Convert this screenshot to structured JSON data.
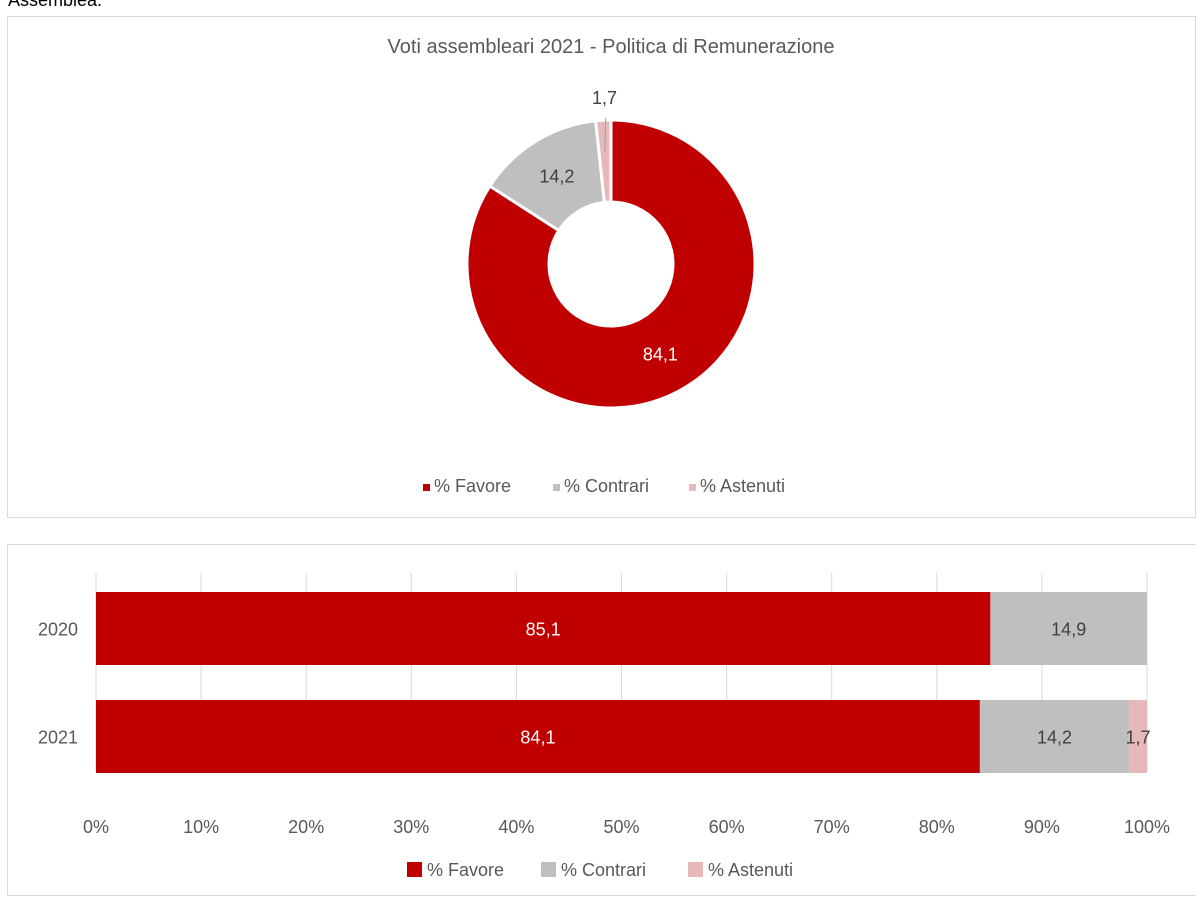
{
  "page": {
    "top_text": "Assemblea."
  },
  "chart_data": [
    {
      "type": "pie",
      "variant": "donut",
      "title": "Voti assembleari 2021 - Politica di Remunerazione",
      "categories": [
        "% Favore",
        "% Contrari",
        "% Astenuti"
      ],
      "values": [
        84.1,
        14.2,
        1.7
      ],
      "labels": [
        "84,1",
        "14,2",
        "1,7"
      ],
      "colors": [
        "#c00000",
        "#bfbfbf",
        "#e6b8b7"
      ],
      "legend_position": "bottom"
    },
    {
      "type": "bar",
      "orientation": "horizontal",
      "stacked": "percent",
      "categories": [
        "2020",
        "2021"
      ],
      "series": [
        {
          "name": "% Favore",
          "values": [
            85.1,
            84.1
          ],
          "labels": [
            "85,1",
            "84,1"
          ],
          "color": "#c00000"
        },
        {
          "name": "% Contrari",
          "values": [
            14.9,
            14.2
          ],
          "labels": [
            "14,9",
            "14,2"
          ],
          "color": "#bfbfbf"
        },
        {
          "name": "% Astenuti",
          "values": [
            0,
            1.7
          ],
          "labels": [
            "",
            "1,7"
          ],
          "color": "#e6b8b7"
        }
      ],
      "xlim": [
        0,
        100
      ],
      "xticks": [
        "0%",
        "10%",
        "20%",
        "30%",
        "40%",
        "50%",
        "60%",
        "70%",
        "80%",
        "90%",
        "100%"
      ],
      "grid": true,
      "legend_position": "bottom"
    }
  ]
}
